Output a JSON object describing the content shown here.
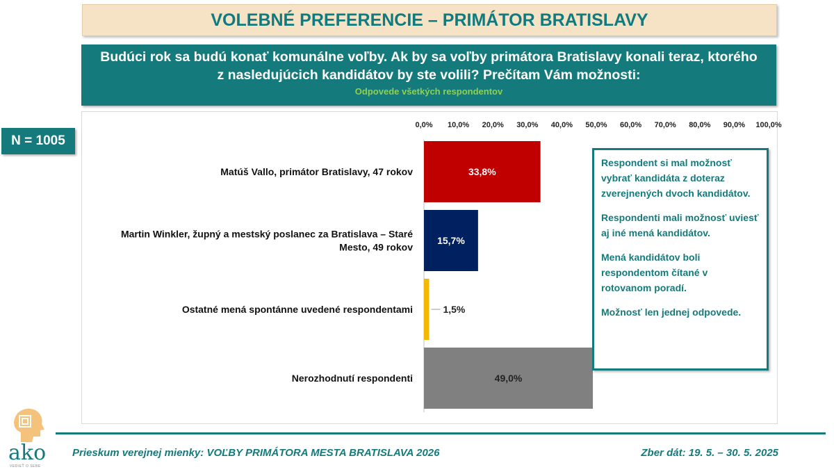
{
  "header": {
    "title": "VOLEBNÉ PREFERENCIE – PRIMÁTOR BRATISLAVY",
    "question_line1": "Budúci rok sa budú konať komunálne voľby. Ak by sa voľby primátora Bratislavy konali teraz, ktorého",
    "question_line2": "z nasledujúcich kandidátov by ste volili? Prečítam Vám možnosti:",
    "question_sub": "Odpovede všetkých respondentov"
  },
  "sample": {
    "label": "N = 1005"
  },
  "notes": [
    "Respondent si mal možnosť vybrať kandidáta z doteraz zverejnených dvoch kandidátov.",
    "Respondenti mali možnosť uviesť aj iné mená kandidátov.",
    "Mená kandidátov boli respondentom čítané v rotovanom poradí.",
    "Možnosť len jednej odpovede."
  ],
  "footer": {
    "left": "Prieskum verejnej mienky: VOĽBY PRIMÁTORA MESTA BRATISLAVA 2026",
    "right": "Zber dát: 19. 5. – 30. 5. 2025"
  },
  "logo": {
    "text": "ako",
    "tagline": "VEDIEŤ O SEBE"
  },
  "chart_data": {
    "type": "bar",
    "orientation": "horizontal",
    "categories": [
      [
        "Matúš Vallo, primátor Bratislavy, 47 rokov"
      ],
      [
        "Martin Winkler, župný a mestský poslanec za Bratislava – Staré",
        "Mesto, 49 rokov"
      ],
      [
        "Ostatné mená spontánne uvedené respondentami"
      ],
      [
        "Nerozhodnutí respondenti"
      ]
    ],
    "values": [
      33.8,
      15.7,
      1.5,
      49.0
    ],
    "value_labels": [
      "33,8%",
      "15,7%",
      "1,5%",
      "49,0%"
    ],
    "colors": [
      "#c00000",
      "#002060",
      "#f5b800",
      "#808080"
    ],
    "label_colors": [
      "#ffffff",
      "#ffffff",
      "#222222",
      "#222222"
    ],
    "xlim": [
      0,
      100
    ],
    "ticks": [
      "0,0%",
      "10,0%",
      "20,0%",
      "30,0%",
      "40,0%",
      "50,0%",
      "60,0%",
      "70,0%",
      "80,0%",
      "90,0%",
      "100,0%"
    ],
    "tick_position": "top",
    "grid": false
  }
}
